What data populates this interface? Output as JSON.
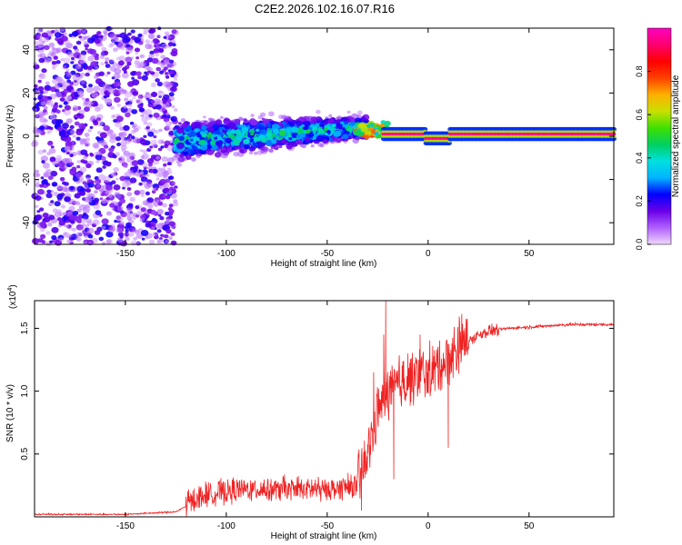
{
  "title": "C2E2.2026.102.16.07.R16",
  "chart_data": [
    {
      "type": "heatmap",
      "xlabel": "Height of straight line (km)",
      "ylabel": "Frequency (Hz)",
      "xlim": [
        -195,
        92
      ],
      "ylim": [
        -50,
        50
      ],
      "xticks": [
        -150,
        -100,
        -50,
        0,
        50
      ],
      "yticks": [
        -40,
        -20,
        0,
        20,
        40
      ],
      "colorbar": {
        "label": "Normalized spectral amplitude",
        "range": [
          0.0,
          1.0
        ],
        "ticks": [
          0.0,
          0.2,
          0.4,
          0.6,
          0.8
        ],
        "colors": [
          "#f0d8ff",
          "#b060ff",
          "#6a00e8",
          "#0000ff",
          "#00b4ff",
          "#00e0e0",
          "#00d060",
          "#40e000",
          "#c8e000",
          "#ffb000",
          "#ff4000",
          "#ff0000",
          "#ff0070",
          "#ff00c0"
        ]
      },
      "regions": [
        {
          "x_range": [
            -195,
            -125
          ],
          "f_spread": 48,
          "amplitude": 0.15,
          "note": "diffuse scattered noise"
        },
        {
          "x_range": [
            -125,
            -35
          ],
          "f_spread_from": 14,
          "f_spread_to": 7,
          "center_from": -2,
          "center_to": 4,
          "amplitude": 0.3
        },
        {
          "x_range": [
            -35,
            -20
          ],
          "f_center": 3,
          "amplitude": 0.6
        },
        {
          "x_range": [
            -20,
            92
          ],
          "f_center": 1,
          "amplitude": 0.98,
          "dip": {
            "x": 5,
            "f": -1
          }
        }
      ]
    },
    {
      "type": "line",
      "color": "#ee2222",
      "xlabel": "Height of straight line (km)",
      "ylabel": "SNR (10 * v/v)",
      "y_scale_label_prefix": "(x10",
      "y_scale_label_exp": "4",
      "y_scale_label_suffix": ")",
      "xlim": [
        -195,
        92
      ],
      "ylim": [
        0,
        1.72
      ],
      "xticks": [
        -150,
        -100,
        -50,
        0,
        50
      ],
      "yticks": [
        0.5,
        1.0,
        1.5
      ],
      "ytick_labels": [
        "0.5",
        "1.0",
        "1.5"
      ],
      "profile": [
        [
          -195,
          0.02
        ],
        [
          -150,
          0.02
        ],
        [
          -125,
          0.04
        ],
        [
          -118,
          0.1
        ],
        [
          -110,
          0.16
        ],
        [
          -90,
          0.2
        ],
        [
          -70,
          0.2
        ],
        [
          -50,
          0.2
        ],
        [
          -35,
          0.22
        ],
        [
          -30,
          0.45
        ],
        [
          -25,
          0.8
        ],
        [
          -20,
          0.95
        ],
        [
          -10,
          1.05
        ],
        [
          0,
          1.1
        ],
        [
          5,
          1.15
        ],
        [
          10,
          1.22
        ],
        [
          15,
          1.3
        ],
        [
          20,
          1.4
        ],
        [
          25,
          1.45
        ],
        [
          30,
          1.48
        ],
        [
          40,
          1.5
        ],
        [
          50,
          1.51
        ],
        [
          60,
          1.52
        ],
        [
          70,
          1.53
        ],
        [
          80,
          1.53
        ],
        [
          92,
          1.53
        ]
      ],
      "spikes": [
        [
          -21,
          1.72
        ],
        [
          -22,
          1.45
        ],
        [
          -27,
          1.15
        ],
        [
          -10,
          1.3
        ],
        [
          -4,
          1.45
        ],
        [
          8,
          1.25
        ],
        [
          10,
          0.55
        ],
        [
          -17,
          0.3
        ],
        [
          -33,
          0.05
        ]
      ]
    }
  ]
}
